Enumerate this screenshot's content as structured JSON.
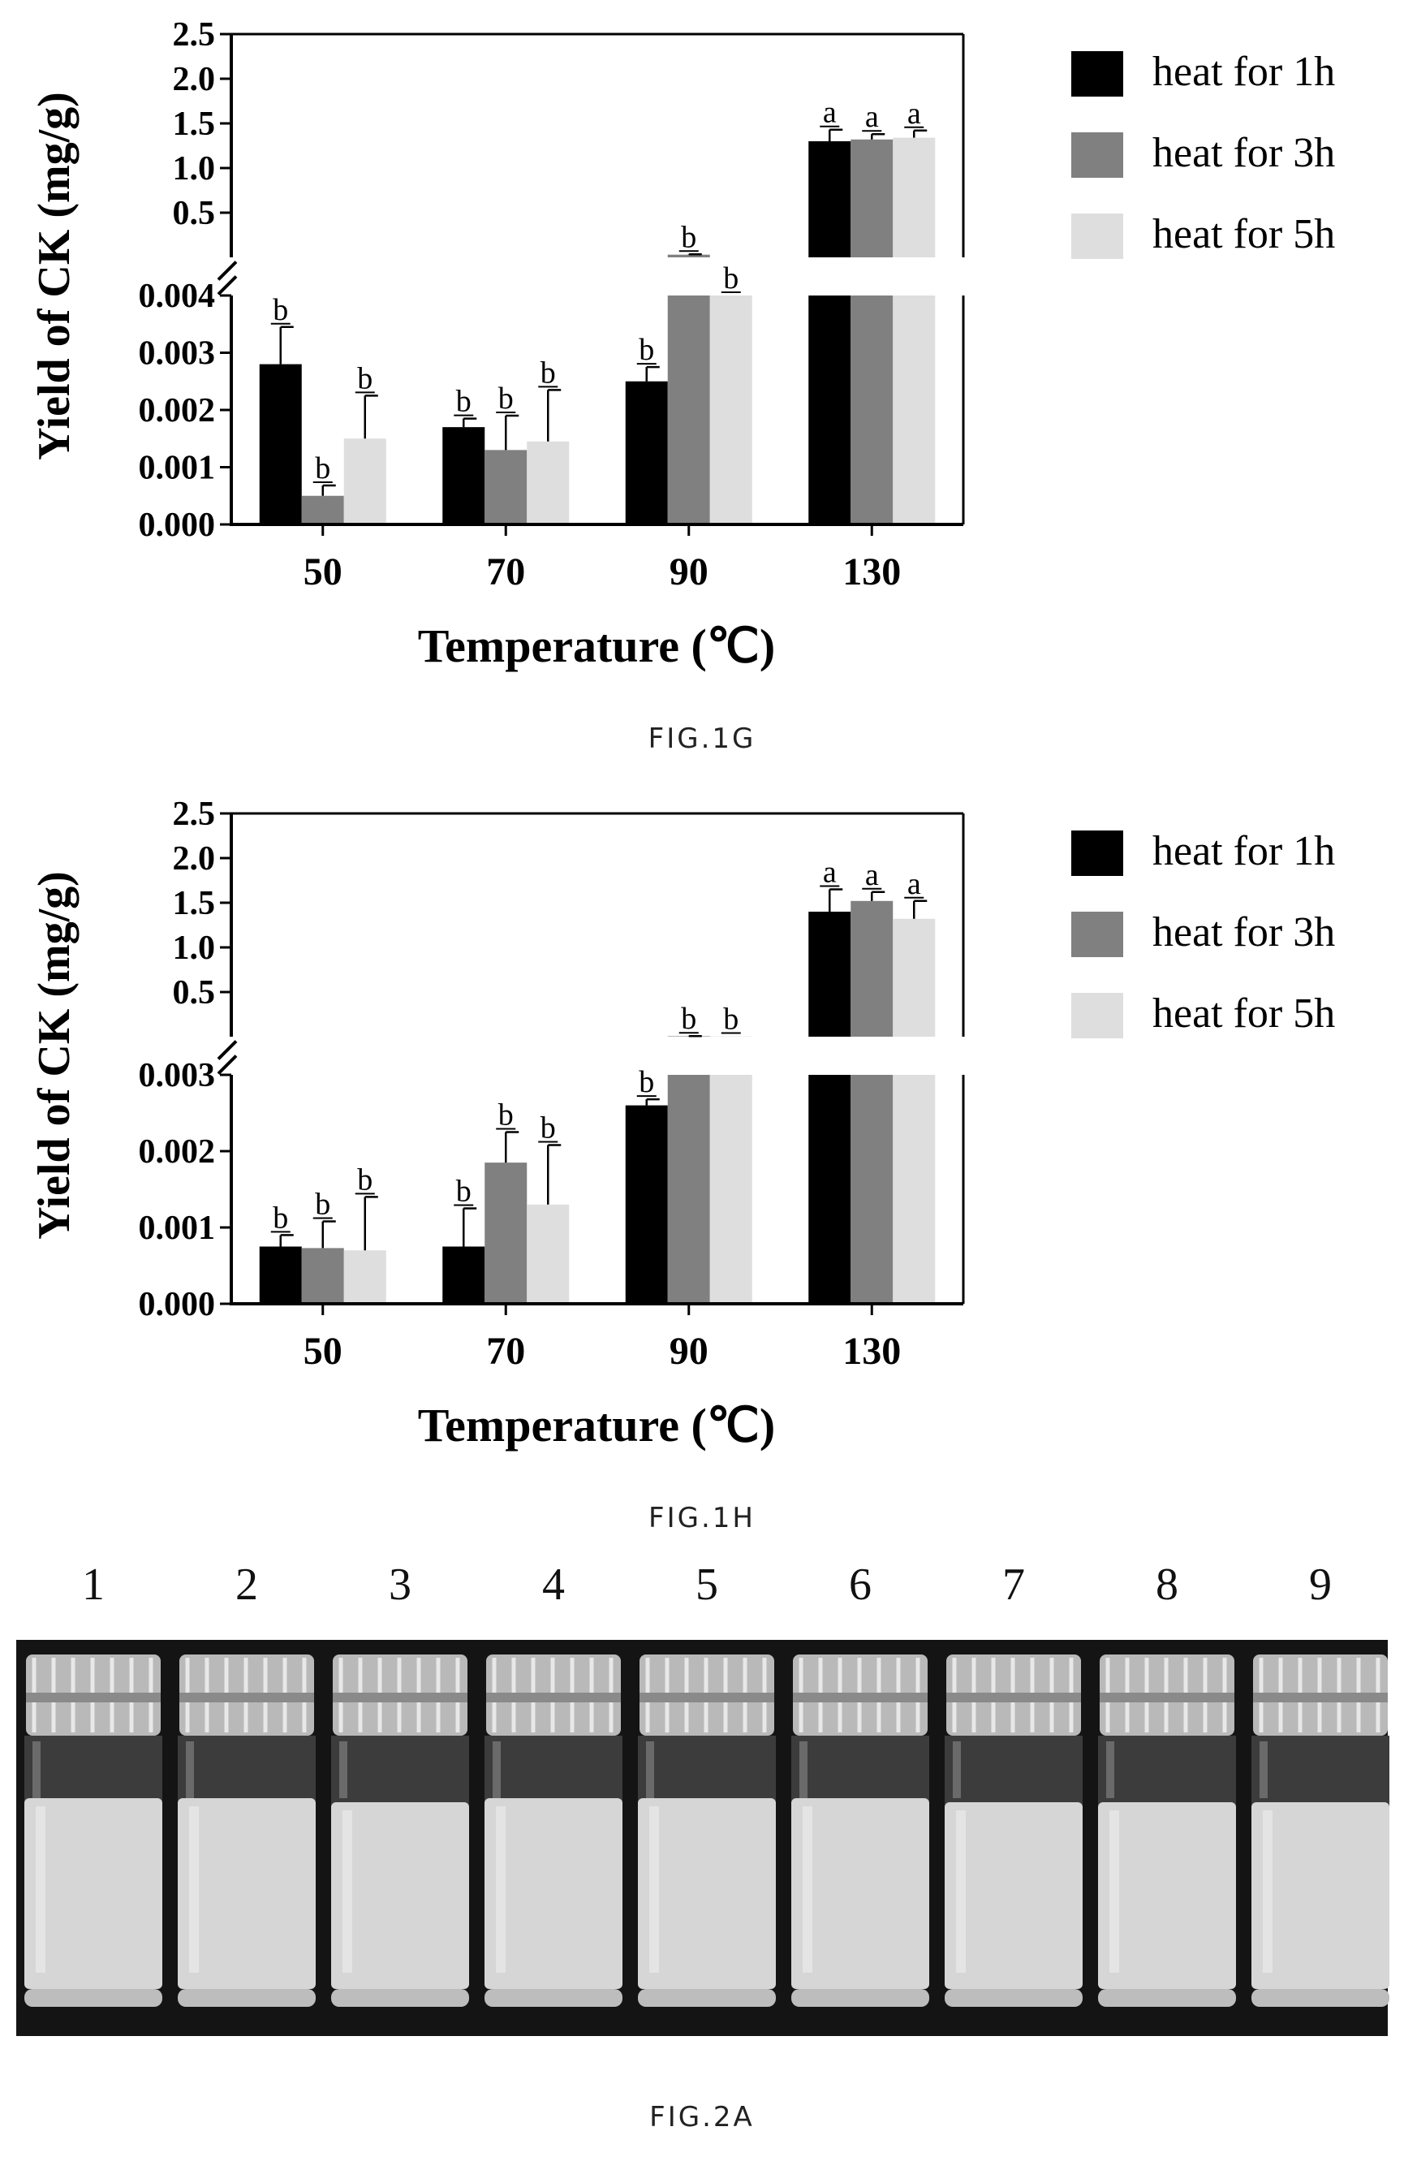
{
  "colors": {
    "heat_1h": "#000000",
    "heat_3h": "#808080",
    "heat_5h": "#dedede"
  },
  "charts": [
    {
      "id": "fig1g",
      "caption": "FIG.1G",
      "xlabel": "Temperature (℃)",
      "ylabel": "Yield of CK (mg/g)",
      "upper_ticks": [
        "0.5",
        "1.0",
        "1.5",
        "2.0",
        "2.5"
      ],
      "lower_ticks": [
        "0.000",
        "0.001",
        "0.002",
        "0.003",
        "0.004"
      ]
    },
    {
      "id": "fig1h",
      "caption": "FIG.1H",
      "xlabel": "Temperature (℃)",
      "ylabel": "Yield of CK (mg/g)",
      "upper_ticks": [
        "0.5",
        "1.0",
        "1.5",
        "2.0",
        "2.5"
      ],
      "lower_ticks": [
        "0.000",
        "0.001",
        "0.002",
        "0.003"
      ]
    }
  ],
  "chart_data": [
    {
      "type": "bar",
      "caption": "FIG.1G",
      "categories": [
        "50",
        "70",
        "90",
        "130"
      ],
      "xlabel": "Temperature (℃)",
      "ylabel": "Yield of CK (mg/g)",
      "y_axis_break": {
        "lower_range": [
          0,
          0.004
        ],
        "upper_range": [
          0.0,
          2.5
        ]
      },
      "legend_position": "right",
      "series": [
        {
          "name": "heat for 1h",
          "values": [
            0.0028,
            0.0017,
            0.0025,
            1.3
          ],
          "errors": [
            0.00065,
            0.00015,
            0.00025,
            0.13
          ],
          "labels": [
            "b",
            "b",
            "b",
            "a"
          ]
        },
        {
          "name": "heat for 3h",
          "values": [
            0.0005,
            0.0013,
            0.03,
            1.32
          ],
          "errors": [
            0.00018,
            0.0006,
            0.004,
            0.06
          ],
          "labels": [
            "b",
            "b",
            "b",
            "a"
          ]
        },
        {
          "name": "heat for 5h",
          "values": [
            0.0015,
            0.00145,
            0.004,
            1.34
          ],
          "errors": [
            0.00075,
            0.0009,
            0.0,
            0.08
          ],
          "labels": [
            "b",
            "b",
            "b",
            "a"
          ]
        }
      ]
    },
    {
      "type": "bar",
      "caption": "FIG.1H",
      "categories": [
        "50",
        "70",
        "90",
        "130"
      ],
      "xlabel": "Temperature (℃)",
      "ylabel": "Yield of CK (mg/g)",
      "y_axis_break": {
        "lower_range": [
          0,
          0.003
        ],
        "upper_range": [
          0.0,
          2.5
        ]
      },
      "legend_position": "right",
      "series": [
        {
          "name": "heat for 1h",
          "values": [
            0.00075,
            0.00075,
            0.0026,
            1.4
          ],
          "errors": [
            0.00015,
            0.0005,
            8e-05,
            0.25
          ],
          "labels": [
            "b",
            "b",
            "b",
            "a"
          ]
        },
        {
          "name": "heat for 3h",
          "values": [
            0.00073,
            0.00185,
            0.005,
            1.52
          ],
          "errors": [
            0.00035,
            0.0004,
            0.002,
            0.1
          ],
          "labels": [
            "b",
            "b",
            "b",
            "a"
          ]
        },
        {
          "name": "heat for 5h",
          "values": [
            0.0007,
            0.0013,
            0.004,
            1.32
          ],
          "errors": [
            0.0007,
            0.00078,
            0.0,
            0.2
          ],
          "labels": [
            "b",
            "b",
            "b",
            "a"
          ]
        }
      ]
    }
  ],
  "photo": {
    "caption": "FIG.2A",
    "vial_numbers": [
      "1",
      "2",
      "3",
      "4",
      "5",
      "6",
      "7",
      "8",
      "9"
    ]
  }
}
